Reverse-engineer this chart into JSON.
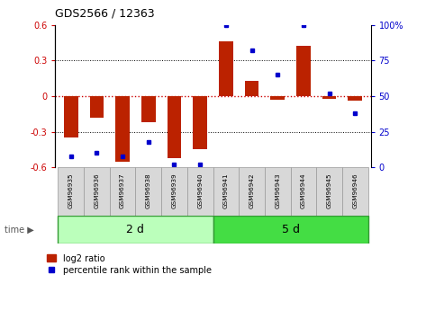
{
  "title": "GDS2566 / 12363",
  "samples": [
    "GSM96935",
    "GSM96936",
    "GSM96937",
    "GSM96938",
    "GSM96939",
    "GSM96940",
    "GSM96941",
    "GSM96942",
    "GSM96943",
    "GSM96944",
    "GSM96945",
    "GSM96946"
  ],
  "log2_ratio": [
    -0.35,
    -0.18,
    -0.55,
    -0.22,
    -0.52,
    -0.45,
    0.46,
    0.13,
    -0.03,
    0.42,
    -0.02,
    -0.04
  ],
  "percentile_rank": [
    8,
    10,
    8,
    18,
    2,
    2,
    100,
    82,
    65,
    100,
    52,
    38
  ],
  "bar_color": "#bb2200",
  "dot_color": "#0000cc",
  "ylim": [
    -0.6,
    0.6
  ],
  "y2lim": [
    0,
    100
  ],
  "yticks": [
    -0.6,
    -0.3,
    0.0,
    0.3,
    0.6
  ],
  "y2ticks": [
    0,
    25,
    50,
    75,
    100
  ],
  "ytick_labels": [
    "-0.6",
    "-0.3",
    "0",
    "0.3",
    "0.6"
  ],
  "y2tick_labels": [
    "0",
    "25",
    "50",
    "75",
    "100%"
  ],
  "group1_label": "2 d",
  "group2_label": "5 d",
  "group1_count": 6,
  "group2_count": 6,
  "group1_color": "#bbffbb",
  "group2_color": "#44dd44",
  "time_label": "time",
  "legend_bar_label": "log2 ratio",
  "legend_dot_label": "percentile rank within the sample",
  "hline_color": "#cc0000",
  "grid_color": "black",
  "bg_color": "#ffffff"
}
